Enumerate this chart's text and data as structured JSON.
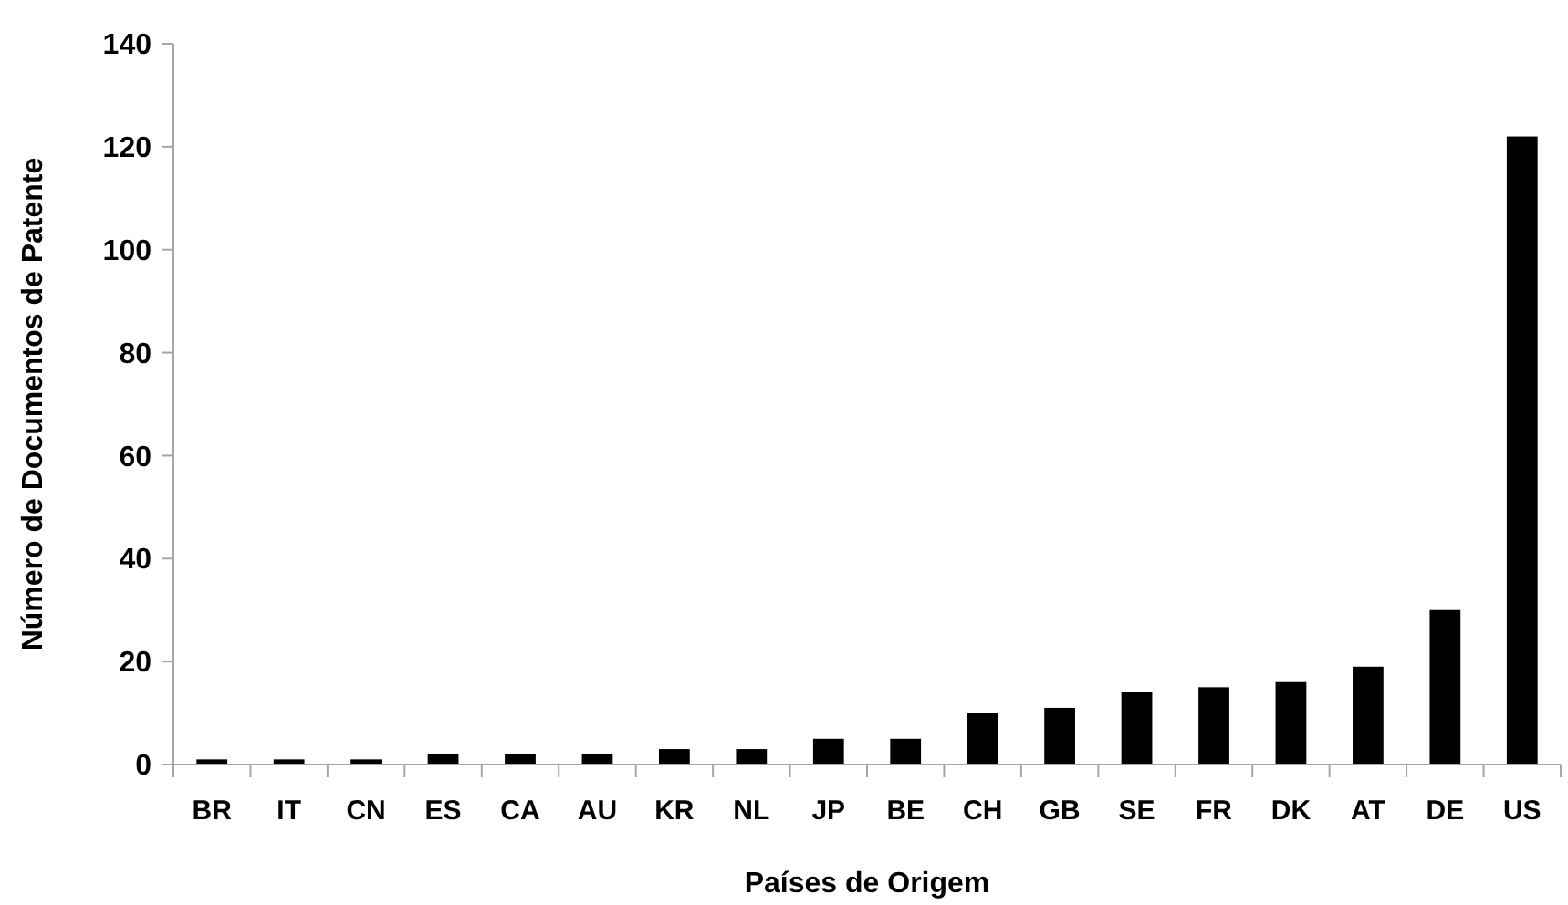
{
  "chart_data": {
    "type": "bar",
    "xlabel": "Países de Origem",
    "ylabel": "Número de Documentos de Patente",
    "categories": [
      "BR",
      "IT",
      "CN",
      "ES",
      "CA",
      "AU",
      "KR",
      "NL",
      "JP",
      "BE",
      "CH",
      "GB",
      "SE",
      "FR",
      "DK",
      "AT",
      "DE",
      "US"
    ],
    "values": [
      1,
      1,
      1,
      2,
      2,
      2,
      3,
      3,
      5,
      5,
      10,
      11,
      14,
      15,
      16,
      19,
      30,
      122
    ],
    "color": "#000000",
    "ylim": [
      0,
      140
    ],
    "yticks": [
      0,
      20,
      40,
      60,
      80,
      100,
      120,
      140
    ],
    "grid": false
  }
}
